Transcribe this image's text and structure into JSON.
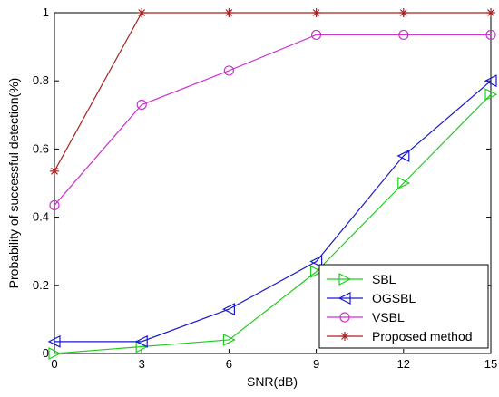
{
  "chart_data": {
    "type": "line",
    "title": "",
    "xlabel": "SNR(dB)",
    "ylabel": "Probability of successful detection(%)",
    "x": [
      0,
      3,
      6,
      9,
      12,
      15
    ],
    "xlim": [
      0,
      15
    ],
    "ylim": [
      0,
      1
    ],
    "x_ticks": [
      "0",
      "3",
      "6",
      "9",
      "12",
      "15"
    ],
    "y_ticks": [
      "0",
      "0.2",
      "0.4",
      "0.6",
      "0.8",
      "1"
    ],
    "grid": false,
    "legend_position": "bottom-right",
    "series": [
      {
        "name": "SBL",
        "values": [
          0.0,
          0.02,
          0.04,
          0.24,
          0.5,
          0.76
        ],
        "color": "#22cc22",
        "marker": "triangle-right"
      },
      {
        "name": "OGSBL",
        "values": [
          0.035,
          0.035,
          0.13,
          0.27,
          0.58,
          0.8
        ],
        "color": "#1a1acc",
        "marker": "triangle-left"
      },
      {
        "name": "VSBL",
        "values": [
          0.435,
          0.73,
          0.83,
          0.935,
          0.935,
          0.935
        ],
        "color": "#cc33cc",
        "marker": "circle"
      },
      {
        "name": "Proposed method",
        "values": [
          0.535,
          1.0,
          1.0,
          1.0,
          1.0,
          1.0
        ],
        "color": "#aa2222",
        "marker": "star"
      }
    ]
  }
}
